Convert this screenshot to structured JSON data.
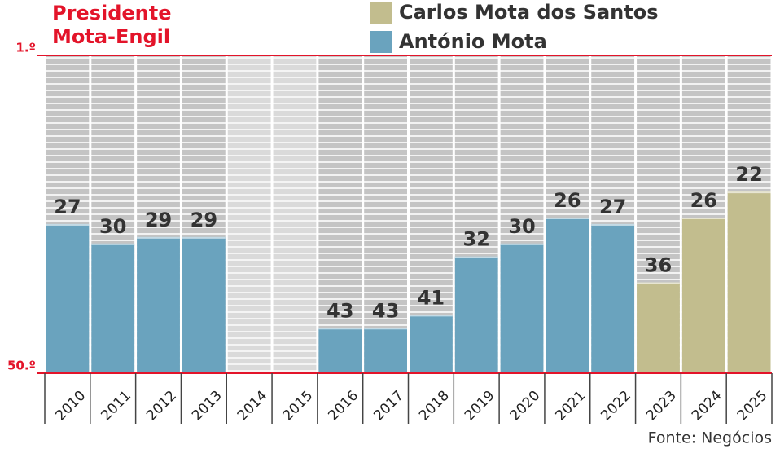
{
  "chart_data": {
    "type": "bar",
    "title": "Presidente Mota-Engil",
    "source": "Fonte: Negócios",
    "categories": [
      "2010",
      "2011",
      "2012",
      "2013",
      "2014",
      "2015",
      "2016",
      "2017",
      "2018",
      "2019",
      "2020",
      "2021",
      "2022",
      "2023",
      "2024",
      "2025"
    ],
    "series": [
      {
        "name": "Carlos Mota dos Santos",
        "color": "#c2bd8e",
        "values": [
          null,
          null,
          null,
          null,
          null,
          null,
          null,
          null,
          null,
          null,
          null,
          null,
          null,
          36,
          26,
          22
        ]
      },
      {
        "name": "António Mota",
        "color": "#6aa3be",
        "values": [
          27,
          30,
          29,
          29,
          null,
          null,
          43,
          43,
          41,
          32,
          30,
          26,
          27,
          null,
          null,
          null
        ]
      }
    ],
    "ylim": [
      50,
      1
    ],
    "yticks": [
      {
        "value": 1,
        "label": "1.º"
      },
      {
        "value": 50,
        "label": "50.º"
      }
    ],
    "grid": true
  }
}
